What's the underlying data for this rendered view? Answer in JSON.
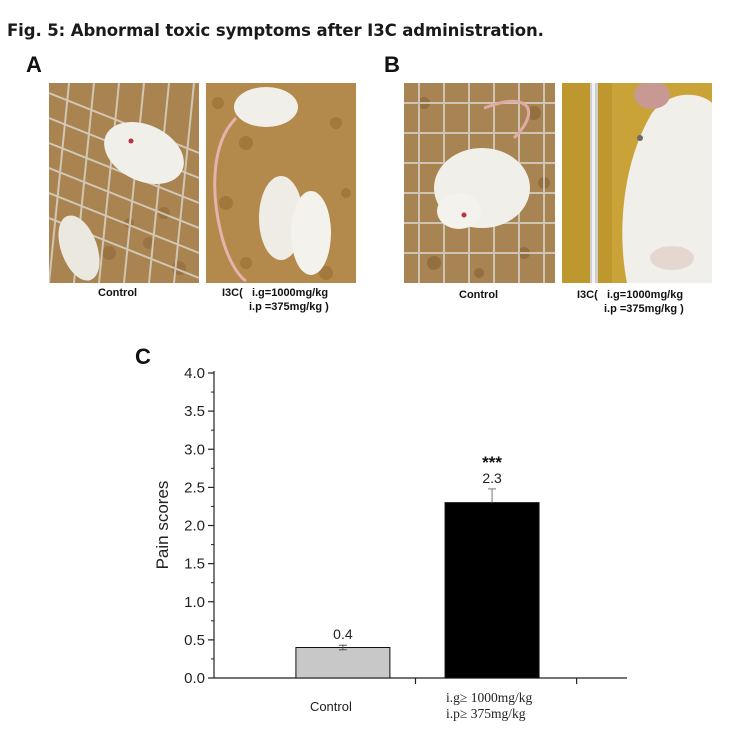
{
  "figure": {
    "title": "Fig. 5: Abnormal toxic symptoms after I3C administration."
  },
  "panels": {
    "a": {
      "letter": "A",
      "control_caption": "Control",
      "treated_caption_line1": "I3C(   i.g=1000mg/kg",
      "treated_caption_line2": "i.p =375mg/kg )"
    },
    "b": {
      "letter": "B",
      "control_caption": "Control",
      "treated_caption_line1": "I3C(   i.g=1000mg/kg",
      "treated_caption_line2": "i.p =375mg/kg )"
    },
    "c": {
      "letter": "C"
    }
  },
  "colors": {
    "control_bar": "#c8c8c8",
    "treated_bar": "#000000",
    "photo_bedding": "#b48a4c",
    "photo_mouse": "#f1efe9"
  },
  "chart_data": {
    "type": "bar",
    "ylabel": "Pain scores",
    "ylim": [
      0,
      4.0
    ],
    "yticks": [
      "0.0",
      "0.5",
      "1.0",
      "1.5",
      "2.0",
      "2.5",
      "3.0",
      "3.5",
      "4.0"
    ],
    "categories": [
      {
        "lines": [
          "Control"
        ]
      },
      {
        "lines": [
          "i.g≥  1000mg/kg",
          "i.p≥  375mg/kg"
        ]
      }
    ],
    "values": [
      0.4,
      2.3
    ],
    "errors": [
      0.03,
      0.18
    ],
    "value_labels": [
      "0.4",
      "2.3"
    ],
    "significance": [
      "",
      "***"
    ]
  }
}
